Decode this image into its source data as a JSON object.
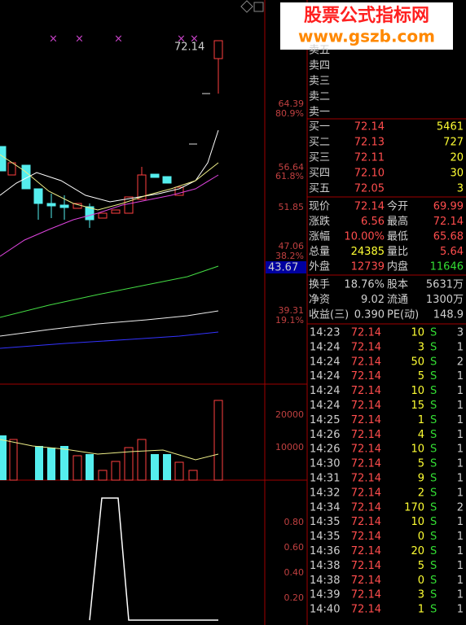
{
  "watermark": {
    "title": "股票公式指标网",
    "url": "www.gszb.com"
  },
  "chart": {
    "last_price_label": "72.14",
    "price_axis_labels": [
      "64.39",
      "80.9%",
      "56.64",
      "61.8%",
      "51.85",
      "47.06",
      "38.2%",
      "39.31",
      "19.1%"
    ],
    "current_marker": "43.67",
    "volume_axis_labels": [
      "20000",
      "10000"
    ],
    "indicator_axis_labels": [
      "0.80",
      "0.60",
      "0.40",
      "0.20"
    ]
  },
  "order_book": {
    "asks": [
      "卖五",
      "卖四",
      "卖三",
      "卖二",
      "卖一"
    ],
    "bids": [
      [
        "买一",
        "72.14",
        "5461"
      ],
      [
        "买二",
        "72.13",
        "727"
      ],
      [
        "买三",
        "72.11",
        "20"
      ],
      [
        "买四",
        "72.10",
        "30"
      ],
      [
        "买五",
        "72.05",
        "3"
      ]
    ]
  },
  "quote": [
    [
      "现价",
      "72.14",
      "今开",
      "69.99"
    ],
    [
      "涨跌",
      "6.56",
      "最高",
      "72.14"
    ],
    [
      "涨幅",
      "10.00%",
      "最低",
      "65.68"
    ],
    [
      "总量",
      "24385",
      "量比",
      "5.64"
    ],
    [
      "外盘",
      "12739",
      "内盘",
      "11646"
    ]
  ],
  "fundamentals": [
    [
      "换手",
      "18.76%",
      "股本",
      "5631万"
    ],
    [
      "净资",
      "9.02",
      "流通",
      "1300万"
    ],
    [
      "收益(三)",
      "0.390",
      "PE(动)",
      "148.9"
    ]
  ],
  "trades": [
    [
      "14:23",
      "72.14",
      "10",
      "S",
      "3"
    ],
    [
      "14:24",
      "72.14",
      "3",
      "S",
      "1"
    ],
    [
      "14:24",
      "72.14",
      "50",
      "S",
      "2"
    ],
    [
      "14:24",
      "72.14",
      "5",
      "S",
      "1"
    ],
    [
      "14:24",
      "72.14",
      "10",
      "S",
      "1"
    ],
    [
      "14:24",
      "72.14",
      "15",
      "S",
      "1"
    ],
    [
      "14:25",
      "72.14",
      "1",
      "S",
      "1"
    ],
    [
      "14:26",
      "72.14",
      "4",
      "S",
      "1"
    ],
    [
      "14:26",
      "72.14",
      "10",
      "S",
      "1"
    ],
    [
      "14:30",
      "72.14",
      "5",
      "S",
      "1"
    ],
    [
      "14:31",
      "72.14",
      "9",
      "S",
      "1"
    ],
    [
      "14:32",
      "72.14",
      "2",
      "S",
      "1"
    ],
    [
      "14:34",
      "72.14",
      "170",
      "S",
      "2"
    ],
    [
      "14:35",
      "72.14",
      "10",
      "S",
      "1"
    ],
    [
      "14:35",
      "72.14",
      "0",
      "S",
      "1"
    ],
    [
      "14:36",
      "72.14",
      "20",
      "S",
      "1"
    ],
    [
      "14:38",
      "72.14",
      "5",
      "S",
      "1"
    ],
    [
      "14:38",
      "72.14",
      "0",
      "S",
      "1"
    ],
    [
      "14:39",
      "72.14",
      "3",
      "S",
      "1"
    ],
    [
      "14:40",
      "72.14",
      "1",
      "S",
      "1"
    ]
  ]
}
